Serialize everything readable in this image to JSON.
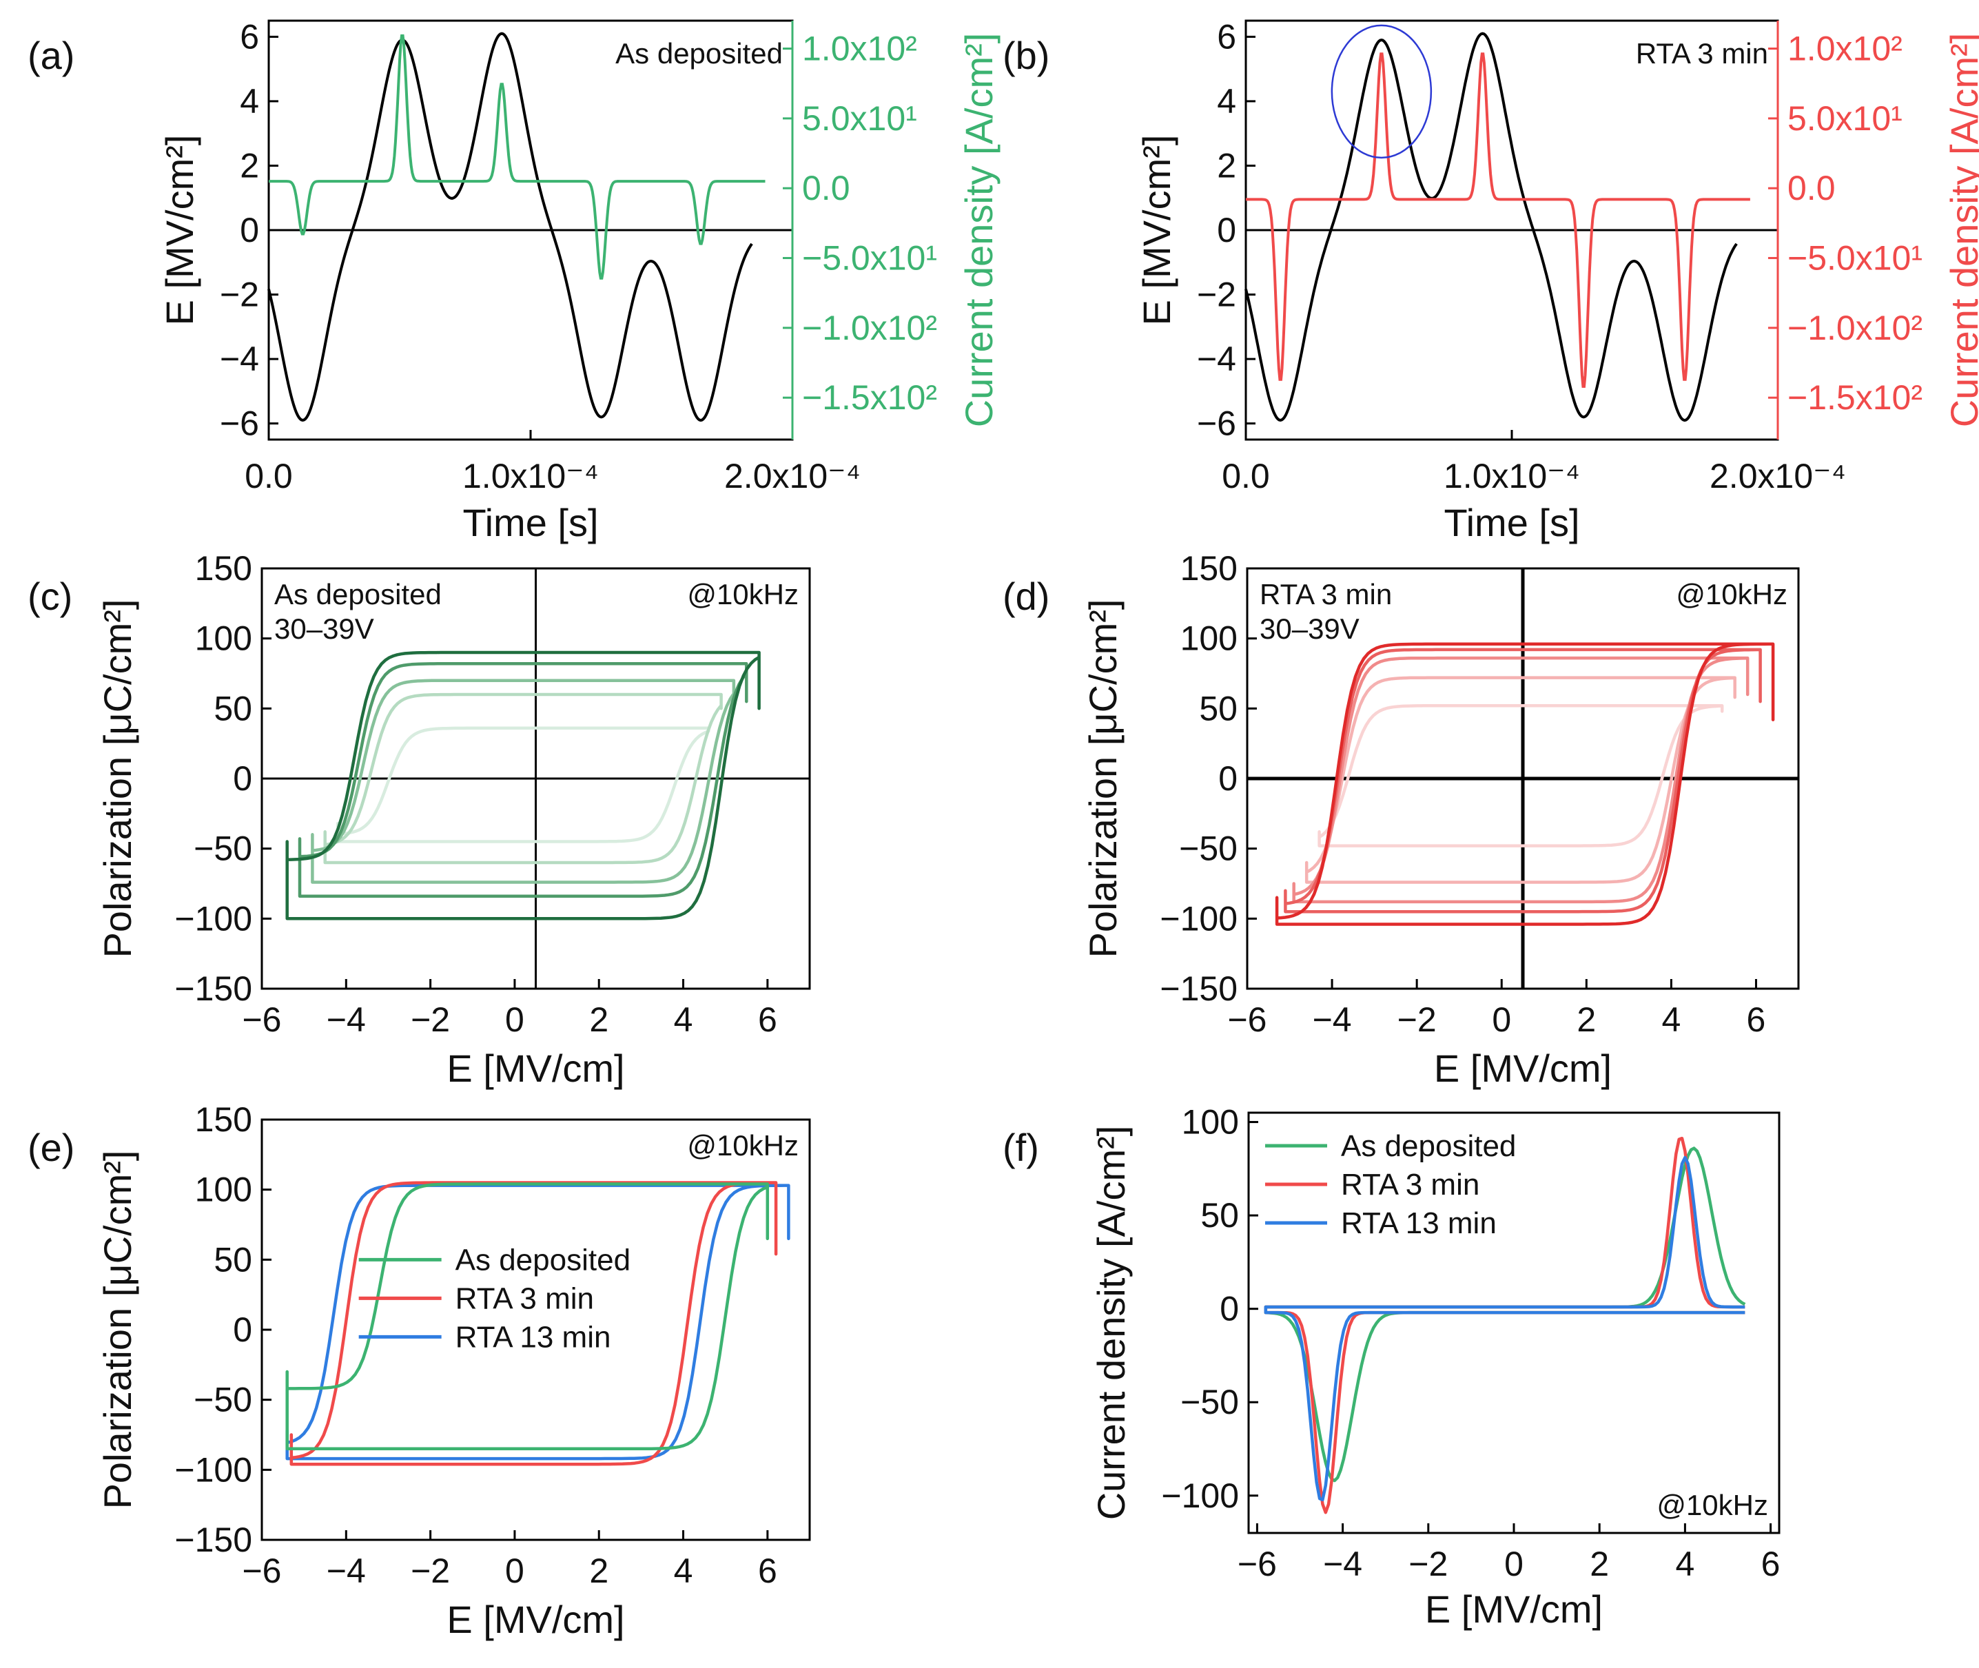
{
  "figure": {
    "panels": [
      "(a)",
      "(b)",
      "(c)",
      "(d)",
      "(e)",
      "(f)"
    ]
  },
  "colors": {
    "as_deposited": "#3cb371",
    "rta3": "#f04a4a",
    "rta13": "#2f7de1",
    "field": "#000000",
    "c_series": [
      "#1f6e3f",
      "#4f9b6a",
      "#86c19a",
      "#b5dbc1",
      "#d8ecdf"
    ],
    "d_series": [
      "#e02a2a",
      "#ea5f5f",
      "#f08a8a",
      "#f5b2b2",
      "#f9d3d3"
    ],
    "circle": "#2d3ad4"
  },
  "chart_data": [
    {
      "panel": "(a)",
      "type": "line",
      "annotation": "As deposited",
      "xlabel": "Time [s]",
      "ylabel": "E [MV/cm²]",
      "ylabel_right": "Current density [A/cm²]",
      "xlim": [
        0,
        0.0002
      ],
      "ylim": [
        -6.5,
        6.5
      ],
      "ylim_right": [
        -180,
        120
      ],
      "x_ticks": [
        "0.0",
        "1.0x10⁻⁴",
        "2.0x10⁻⁴"
      ],
      "y_ticks": [
        "−6",
        "−4",
        "−2",
        "0",
        "2",
        "4",
        "6"
      ],
      "y_right_ticks": [
        "−1.5x10²",
        "−1.0x10²",
        "−5.0x10¹",
        "0.0",
        "5.0x10¹",
        "1.0x10²"
      ],
      "series": [
        {
          "name": "E",
          "axis": "left",
          "pulses": [
            {
              "t": 1.3e-05,
              "amp": -5.9
            },
            {
              "t": 5.1e-05,
              "amp": 5.9
            },
            {
              "t": 8.9e-05,
              "amp": 6.1
            },
            {
              "t": 0.000127,
              "amp": -5.8
            },
            {
              "t": 0.000165,
              "amp": -5.9
            }
          ]
        },
        {
          "name": "Current density",
          "axis": "right",
          "baseline": 5,
          "t_end": 0.00019,
          "peaks": [
            {
              "t": 1.3e-05,
              "amp": -38
            },
            {
              "t": 5.1e-05,
              "amp": 105
            },
            {
              "t": 8.9e-05,
              "amp": 70
            },
            {
              "t": 0.000127,
              "amp": -70
            },
            {
              "t": 0.000165,
              "amp": -45
            }
          ]
        }
      ]
    },
    {
      "panel": "(b)",
      "type": "line",
      "annotation": "RTA 3 min",
      "xlabel": "Time [s]",
      "ylabel": "E [MV/cm²]",
      "ylabel_right": "Current density [A/cm²]",
      "xlim": [
        0,
        0.0002
      ],
      "ylim": [
        -6.5,
        6.5
      ],
      "ylim_right": [
        -180,
        120
      ],
      "x_ticks": [
        "0.0",
        "1.0x10⁻⁴",
        "2.0x10⁻⁴"
      ],
      "y_ticks": [
        "−6",
        "−4",
        "−2",
        "0",
        "2",
        "4",
        "6"
      ],
      "y_right_ticks": [
        "−1.5x10²",
        "−1.0x10²",
        "−5.0x10¹",
        "0.0",
        "5.0x10¹",
        "1.0x10²"
      ],
      "series": [
        {
          "name": "E",
          "axis": "left",
          "pulses": [
            {
              "t": 1.3e-05,
              "amp": -5.9
            },
            {
              "t": 5.1e-05,
              "amp": 5.9
            },
            {
              "t": 8.9e-05,
              "amp": 6.1
            },
            {
              "t": 0.000127,
              "amp": -5.8
            },
            {
              "t": 0.000165,
              "amp": -5.9
            }
          ]
        },
        {
          "name": "Current density",
          "axis": "right",
          "baseline": -8,
          "t_end": 0.00019,
          "peaks": [
            {
              "t": 1.3e-05,
              "amp": -130
            },
            {
              "t": 5.1e-05,
              "amp": 105
            },
            {
              "t": 8.9e-05,
              "amp": 105
            },
            {
              "t": 0.000127,
              "amp": -135
            },
            {
              "t": 0.000165,
              "amp": -130
            }
          ]
        }
      ]
    },
    {
      "panel": "(c)",
      "type": "line",
      "annotation": "As deposited",
      "annotation2": "30–39V",
      "annotation_right": "@10kHz",
      "xlabel": "E [MV/cm]",
      "ylabel": "Polarization [μC/cm²]",
      "xlim": [
        -6,
        7
      ],
      "ylim": [
        -150,
        150
      ],
      "x_ticks": [
        "−6",
        "−4",
        "−2",
        "0",
        "2",
        "4",
        "6"
      ],
      "y_ticks": [
        "−150",
        "−100",
        "−50",
        "0",
        "50",
        "100",
        "150"
      ],
      "loops": [
        {
          "Ec_neg": -3.8,
          "Ec_pos": 4.9,
          "Pup": 90,
          "Pdown": -58,
          "Pdown_r": -100,
          "xmin": -5.4,
          "xmax": 5.8,
          "Ptip_neg": -45,
          "Ptip_pos": 50
        },
        {
          "Ec_neg": -3.7,
          "Ec_pos": 4.8,
          "Pup": 82,
          "Pdown": -56,
          "Pdown_r": -84,
          "xmin": -5.1,
          "xmax": 5.5,
          "Ptip_neg": -43,
          "Ptip_pos": 55
        },
        {
          "Ec_neg": -3.6,
          "Ec_pos": 4.6,
          "Pup": 70,
          "Pdown": -52,
          "Pdown_r": -74,
          "xmin": -4.8,
          "xmax": 5.2,
          "Ptip_neg": -40,
          "Ptip_pos": 52
        },
        {
          "Ec_neg": -3.4,
          "Ec_pos": 4.3,
          "Pup": 60,
          "Pdown": -48,
          "Pdown_r": -60,
          "xmin": -4.5,
          "xmax": 4.9,
          "Ptip_neg": -38,
          "Ptip_pos": 50
        },
        {
          "Ec_neg": -3.0,
          "Ec_pos": 3.8,
          "Pup": 36,
          "Pdown": -40,
          "Pdown_r": -45,
          "xmin": -4.2,
          "xmax": 4.6,
          "Ptip_neg": -32,
          "Ptip_pos": 35
        }
      ]
    },
    {
      "panel": "(d)",
      "type": "line",
      "annotation": "RTA 3 min",
      "annotation2": "30–39V",
      "annotation_right": "@10kHz",
      "xlabel": "E [MV/cm]",
      "ylabel": "Polarization [μC/cm²]",
      "xlim": [
        -6,
        7
      ],
      "ylim": [
        -150,
        150
      ],
      "x_ticks": [
        "−6",
        "−4",
        "−2",
        "0",
        "2",
        "4",
        "6"
      ],
      "y_ticks": [
        "−150",
        "−100",
        "−50",
        "0",
        "50",
        "100",
        "150"
      ],
      "loops": [
        {
          "Ec_neg": -3.9,
          "Ec_pos": 4.2,
          "Pup": 96,
          "Pdown": -100,
          "Pdown_r": -104,
          "xmin": -5.3,
          "xmax": 6.4,
          "Ptip_neg": -85,
          "Ptip_pos": 42
        },
        {
          "Ec_neg": -3.85,
          "Ec_pos": 4.15,
          "Pup": 92,
          "Pdown": -90,
          "Pdown_r": -95,
          "xmin": -5.1,
          "xmax": 6.1,
          "Ptip_neg": -80,
          "Ptip_pos": 55
        },
        {
          "Ec_neg": -3.8,
          "Ec_pos": 4.1,
          "Pup": 86,
          "Pdown": -84,
          "Pdown_r": -88,
          "xmin": -4.9,
          "xmax": 5.8,
          "Ptip_neg": -75,
          "Ptip_pos": 60
        },
        {
          "Ec_neg": -3.75,
          "Ec_pos": 4.0,
          "Pup": 72,
          "Pdown": -70,
          "Pdown_r": -74,
          "xmin": -4.6,
          "xmax": 5.5,
          "Ptip_neg": -60,
          "Ptip_pos": 58
        },
        {
          "Ec_neg": -3.6,
          "Ec_pos": 3.8,
          "Pup": 52,
          "Pdown": -46,
          "Pdown_r": -48,
          "xmin": -4.3,
          "xmax": 5.2,
          "Ptip_neg": -38,
          "Ptip_pos": 48
        }
      ]
    },
    {
      "panel": "(e)",
      "type": "line",
      "annotation_right": "@10kHz",
      "xlabel": "E [MV/cm]",
      "ylabel": "Polarization [μC/cm²]",
      "xlim": [
        -6,
        7
      ],
      "ylim": [
        -150,
        150
      ],
      "x_ticks": [
        "−6",
        "−4",
        "−2",
        "0",
        "2",
        "4",
        "6"
      ],
      "y_ticks": [
        "−150",
        "−100",
        "−50",
        "0",
        "50",
        "100",
        "150"
      ],
      "legend": [
        "As deposited",
        "RTA 3 min",
        "RTA 13 min"
      ],
      "loops": [
        {
          "name": "As deposited",
          "Ec_neg": -3.2,
          "Ec_pos": 5.0,
          "Pup": 104,
          "Pdown": -42,
          "Pdown_r": -85,
          "xmin": -5.4,
          "xmax": 6.0,
          "Ptip_neg": -30,
          "Ptip_pos": 65
        },
        {
          "name": "RTA 3 min",
          "Ec_neg": -4.0,
          "Ec_pos": 4.1,
          "Pup": 105,
          "Pdown": -92,
          "Pdown_r": -96,
          "xmin": -5.3,
          "xmax": 6.2,
          "Ptip_neg": -75,
          "Ptip_pos": 54
        },
        {
          "name": "RTA 13 min",
          "Ec_neg": -4.3,
          "Ec_pos": 4.4,
          "Pup": 103,
          "Pdown": -82,
          "Pdown_r": -92,
          "xmin": -5.4,
          "xmax": 6.5,
          "Ptip_neg": -72,
          "Ptip_pos": 65
        }
      ]
    },
    {
      "panel": "(f)",
      "type": "line",
      "annotation_right": "@10kHz",
      "xlabel": "E [MV/cm]",
      "ylabel": "Current density [A/cm²]",
      "xlim": [
        -6.2,
        6.2
      ],
      "ylim": [
        -120,
        105
      ],
      "x_ticks": [
        "−6",
        "−4",
        "−2",
        "0",
        "2",
        "4",
        "6"
      ],
      "y_ticks": [
        "−100",
        "−50",
        "0",
        "50",
        "100"
      ],
      "legend": [
        "As deposited",
        "RTA 3 min",
        "RTA 13 min"
      ],
      "series": [
        {
          "name": "As deposited",
          "neg_peak": {
            "E": -4.2,
            "J": -90
          },
          "pos_peak": {
            "E": 4.2,
            "J": 85
          },
          "xmin": -5.8,
          "xmax": 5.4
        },
        {
          "name": "RTA 3 min",
          "neg_peak": {
            "E": -4.4,
            "J": -107
          },
          "pos_peak": {
            "E": 3.9,
            "J": 91
          },
          "xmin": -5.8,
          "xmax": 5.4
        },
        {
          "name": "RTA 13 min",
          "neg_peak": {
            "E": -4.5,
            "J": -101
          },
          "pos_peak": {
            "E": 4.0,
            "J": 80
          },
          "xmin": -5.8,
          "xmax": 5.4
        }
      ]
    }
  ]
}
